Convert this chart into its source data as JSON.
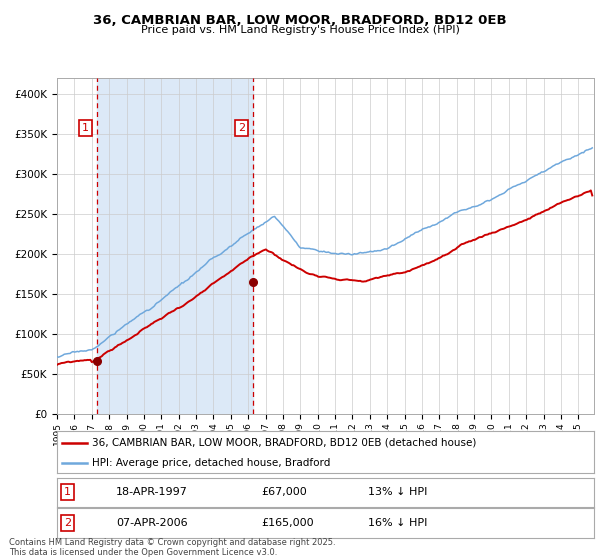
{
  "title_line1": "36, CAMBRIAN BAR, LOW MOOR, BRADFORD, BD12 0EB",
  "title_line2": "Price paid vs. HM Land Registry's House Price Index (HPI)",
  "legend_line1": "36, CAMBRIAN BAR, LOW MOOR, BRADFORD, BD12 0EB (detached house)",
  "legend_line2": "HPI: Average price, detached house, Bradford",
  "annotation1_label": "1",
  "annotation1_date": "18-APR-1997",
  "annotation1_price": "£67,000",
  "annotation1_hpi": "13% ↓ HPI",
  "annotation2_label": "2",
  "annotation2_date": "07-APR-2006",
  "annotation2_price": "£165,000",
  "annotation2_hpi": "16% ↓ HPI",
  "footnote": "Contains HM Land Registry data © Crown copyright and database right 2025.\nThis data is licensed under the Open Government Licence v3.0.",
  "hpi_color": "#6fa8dc",
  "price_color": "#cc0000",
  "marker_color": "#8b0000",
  "vline_color": "#cc0000",
  "bg_shade_color": "#dce9f7",
  "annotation_box_color": "#cc0000",
  "ylim": [
    0,
    420000
  ],
  "xlim_start": 1995.0,
  "xlim_end": 2025.9,
  "sale1_year": 1997.29,
  "sale1_price": 67000,
  "sale2_year": 2006.27,
  "sale2_price": 165000
}
